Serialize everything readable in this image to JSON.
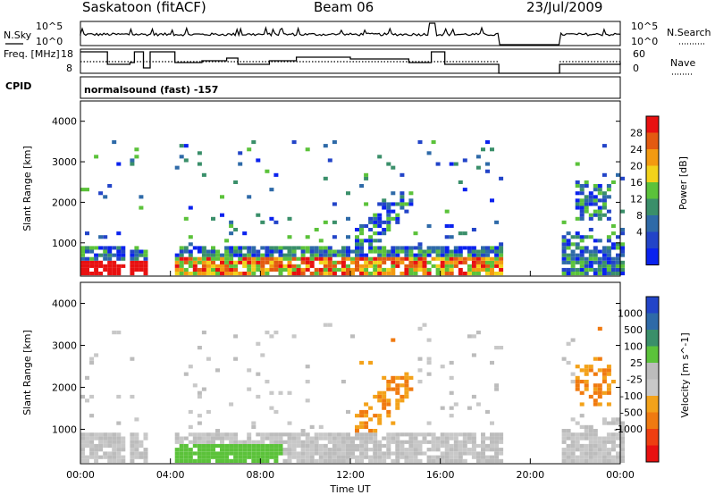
{
  "header": {
    "title": "Saskatoon (fitACF)",
    "beam": "Beam 06",
    "date": "23/Jul/2009",
    "cpid_label": "CPID",
    "cpid_value": "normalsound (fast) -157"
  },
  "colors": {
    "power_scale": [
      "#0a22ee",
      "#2244c8",
      "#2e6aa8",
      "#3a8f6a",
      "#5bc23a",
      "#f2d21a",
      "#f39a10",
      "#e35a10",
      "#e81010"
    ],
    "velocity_scale": [
      "#e81010",
      "#ee3e10",
      "#f07a10",
      "#f3a21a",
      "#c8c8c8",
      "#bcbcbc",
      "#5bc23a",
      "#3a8f6a",
      "#2e6aa8",
      "#2244c8"
    ]
  },
  "chart_data": [
    {
      "type": "line",
      "xrange": [
        0,
        24
      ],
      "series": [
        {
          "name": "N.Sky",
          "scale": "log",
          "y_ticks": [
            "10^5",
            "10^0"
          ]
        },
        {
          "name": "N.Search",
          "scale": "log",
          "y_ticks": [
            "10^5",
            "10^0"
          ],
          "line_style": "dotted"
        }
      ],
      "gaps_hours": [
        [
          18.6,
          21.3
        ]
      ],
      "spikes_hours": [
        [
          15.5,
          15.8
        ]
      ]
    },
    {
      "type": "line",
      "xrange": [
        0,
        24
      ],
      "left_label": "Freq. [MHz]",
      "left_ticks": [
        "18",
        "8"
      ],
      "right_label": "Nave",
      "right_ticks": [
        "60",
        "0"
      ],
      "series": [
        {
          "name": "Freq.",
          "line_style": "solid"
        },
        {
          "name": "Nave",
          "line_style": "dotted"
        }
      ]
    },
    {
      "type": "heatmap",
      "name": "Power",
      "ylabel": "Slant Range [km]",
      "xlabel": "Time UT",
      "xrange": [
        0,
        24
      ],
      "yrange": [
        180,
        4500
      ],
      "x_ticks": [
        "00:00",
        "04:00",
        "08:00",
        "12:00",
        "16:00",
        "20:00",
        "00:00"
      ],
      "y_ticks": [
        1000,
        2000,
        3000,
        4000
      ],
      "colorbar": {
        "label": "Power [dB]",
        "ticks": [
          "28",
          "24",
          "20",
          "16",
          "12",
          "8",
          "4"
        ]
      }
    },
    {
      "type": "heatmap",
      "name": "Velocity",
      "ylabel": "Slant Range [km]",
      "xlabel": "Time UT",
      "xrange": [
        0,
        24
      ],
      "yrange": [
        180,
        4500
      ],
      "x_ticks": [
        "00:00",
        "04:00",
        "08:00",
        "12:00",
        "16:00",
        "20:00",
        "00:00"
      ],
      "y_ticks": [
        1000,
        2000,
        3000,
        4000
      ],
      "colorbar": {
        "label": "Velocity [m s^-1]",
        "ticks": [
          "1000",
          "500",
          "100",
          "25",
          "-25",
          "-100",
          "-500",
          "-1000"
        ]
      }
    }
  ]
}
